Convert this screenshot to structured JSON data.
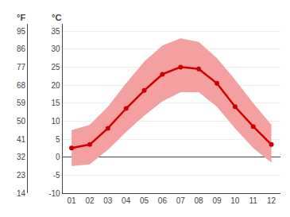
{
  "chart_data": {
    "type": "line",
    "categories": [
      "01",
      "02",
      "03",
      "04",
      "05",
      "06",
      "07",
      "08",
      "09",
      "10",
      "11",
      "12"
    ],
    "series": [
      {
        "type": "band",
        "color": "#f4a0a0",
        "lower": [
          -2.5,
          -2.0,
          2.0,
          7.0,
          11.5,
          15.5,
          18.0,
          18.0,
          14.0,
          8.0,
          2.5,
          -1.5
        ],
        "upper": [
          7.5,
          9.0,
          14.0,
          20.5,
          26.5,
          31.0,
          33.0,
          32.0,
          27.5,
          21.5,
          15.0,
          9.0
        ]
      },
      {
        "type": "line",
        "color": "#cc0000",
        "marker": "circle",
        "values": [
          2.5,
          3.5,
          8.0,
          13.5,
          18.5,
          23.0,
          25.0,
          24.5,
          20.5,
          14.0,
          8.5,
          3.5
        ]
      }
    ],
    "ylabel": "°C",
    "y2label": "°F",
    "ylim": [
      -10,
      37
    ],
    "yticks": [
      -10,
      -5,
      0,
      5,
      10,
      15,
      20,
      25,
      30,
      35
    ],
    "y2lim": [
      14,
      98.6
    ],
    "y2ticks": [
      14,
      23,
      32,
      41,
      50,
      59,
      68,
      77,
      86,
      95
    ],
    "grid": true
  }
}
